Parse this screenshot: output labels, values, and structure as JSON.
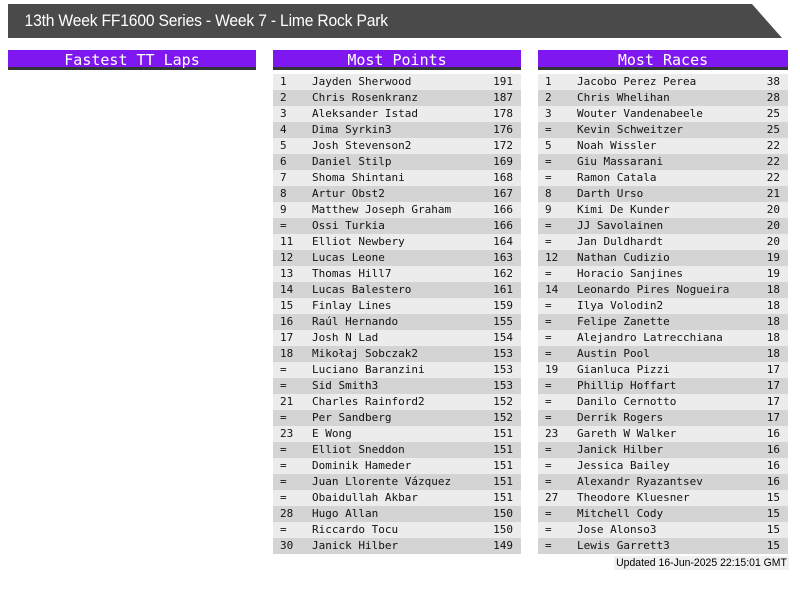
{
  "title": "13th Week FF1600 Series - Week 7 - Lime Rock Park",
  "footer": {
    "updated": "Updated 16-Jun-2025 22:15:01 GMT"
  },
  "colors": {
    "title_bar_bg": "#4a4a4a",
    "column_header_bg": "#7e17f0",
    "column_header_border": "#333333",
    "row_light": "#ececec",
    "row_dark": "#d4d4d4"
  },
  "columns": [
    {
      "header": "Fastest TT Laps",
      "rows": []
    },
    {
      "header": "Most Points",
      "rows": [
        [
          "1",
          "Jayden Sherwood",
          "191"
        ],
        [
          "2",
          "Chris Rosenkranz",
          "187"
        ],
        [
          "3",
          "Aleksander Istad",
          "178"
        ],
        [
          "4",
          "Dima Syrkin3",
          "176"
        ],
        [
          "5",
          "Josh Stevenson2",
          "172"
        ],
        [
          "6",
          "Daniel Stilp",
          "169"
        ],
        [
          "7",
          "Shoma Shintani",
          "168"
        ],
        [
          "8",
          "Artur Obst2",
          "167"
        ],
        [
          "9",
          "Matthew Joseph Graham",
          "166"
        ],
        [
          "=",
          "Ossi Turkia",
          "166"
        ],
        [
          "11",
          "Elliot Newbery",
          "164"
        ],
        [
          "12",
          "Lucas Leone",
          "163"
        ],
        [
          "13",
          "Thomas Hill7",
          "162"
        ],
        [
          "14",
          "Lucas Balestero",
          "161"
        ],
        [
          "15",
          "Finlay Lines",
          "159"
        ],
        [
          "16",
          "Raúl Hernando",
          "155"
        ],
        [
          "17",
          "Josh N Lad",
          "154"
        ],
        [
          "18",
          "Mikołaj Sobczak2",
          "153"
        ],
        [
          "=",
          "Luciano Baranzini",
          "153"
        ],
        [
          "=",
          "Sid Smith3",
          "153"
        ],
        [
          "21",
          "Charles Rainford2",
          "152"
        ],
        [
          "=",
          "Per Sandberg",
          "152"
        ],
        [
          "23",
          "E Wong",
          "151"
        ],
        [
          "=",
          "Elliot Sneddon",
          "151"
        ],
        [
          "=",
          "Dominik Hameder",
          "151"
        ],
        [
          "=",
          "Juan Llorente Vázquez",
          "151"
        ],
        [
          "=",
          "Obaidullah Akbar",
          "151"
        ],
        [
          "28",
          "Hugo Allan",
          "150"
        ],
        [
          "=",
          "Riccardo Tocu",
          "150"
        ],
        [
          "30",
          "Janick Hilber",
          "149"
        ]
      ]
    },
    {
      "header": "Most Races",
      "rows": [
        [
          "1",
          "Jacobo Perez Perea",
          "38"
        ],
        [
          "2",
          "Chris Whelihan",
          "28"
        ],
        [
          "3",
          "Wouter Vandenabeele",
          "25"
        ],
        [
          "=",
          "Kevin Schweitzer",
          "25"
        ],
        [
          "5",
          "Noah Wissler",
          "22"
        ],
        [
          "=",
          "Giu Massarani",
          "22"
        ],
        [
          "=",
          "Ramon Catala",
          "22"
        ],
        [
          "8",
          "Darth Urso",
          "21"
        ],
        [
          "9",
          "Kimi De Kunder",
          "20"
        ],
        [
          "=",
          "JJ Savolainen",
          "20"
        ],
        [
          "=",
          "Jan Duldhardt",
          "20"
        ],
        [
          "12",
          "Nathan Cudizio",
          "19"
        ],
        [
          "=",
          "Horacio Sanjines",
          "19"
        ],
        [
          "14",
          "Leonardo Pires Nogueira",
          "18"
        ],
        [
          "=",
          "Ilya Volodin2",
          "18"
        ],
        [
          "=",
          "Felipe Zanette",
          "18"
        ],
        [
          "=",
          "Alejandro Latrecchiana",
          "18"
        ],
        [
          "=",
          "Austin Pool",
          "18"
        ],
        [
          "19",
          "Gianluca Pizzi",
          "17"
        ],
        [
          "=",
          "Phillip Hoffart",
          "17"
        ],
        [
          "=",
          "Danilo Cernotto",
          "17"
        ],
        [
          "=",
          "Derrik Rogers",
          "17"
        ],
        [
          "23",
          "Gareth W Walker",
          "16"
        ],
        [
          "=",
          "Janick Hilber",
          "16"
        ],
        [
          "=",
          "Jessica Bailey",
          "16"
        ],
        [
          "=",
          "Alexandr Ryazantsev",
          "16"
        ],
        [
          "27",
          "Theodore Kluesner",
          "15"
        ],
        [
          "=",
          "Mitchell Cody",
          "15"
        ],
        [
          "=",
          "Jose Alonso3",
          "15"
        ],
        [
          "=",
          "Lewis Garrett3",
          "15"
        ]
      ]
    }
  ]
}
